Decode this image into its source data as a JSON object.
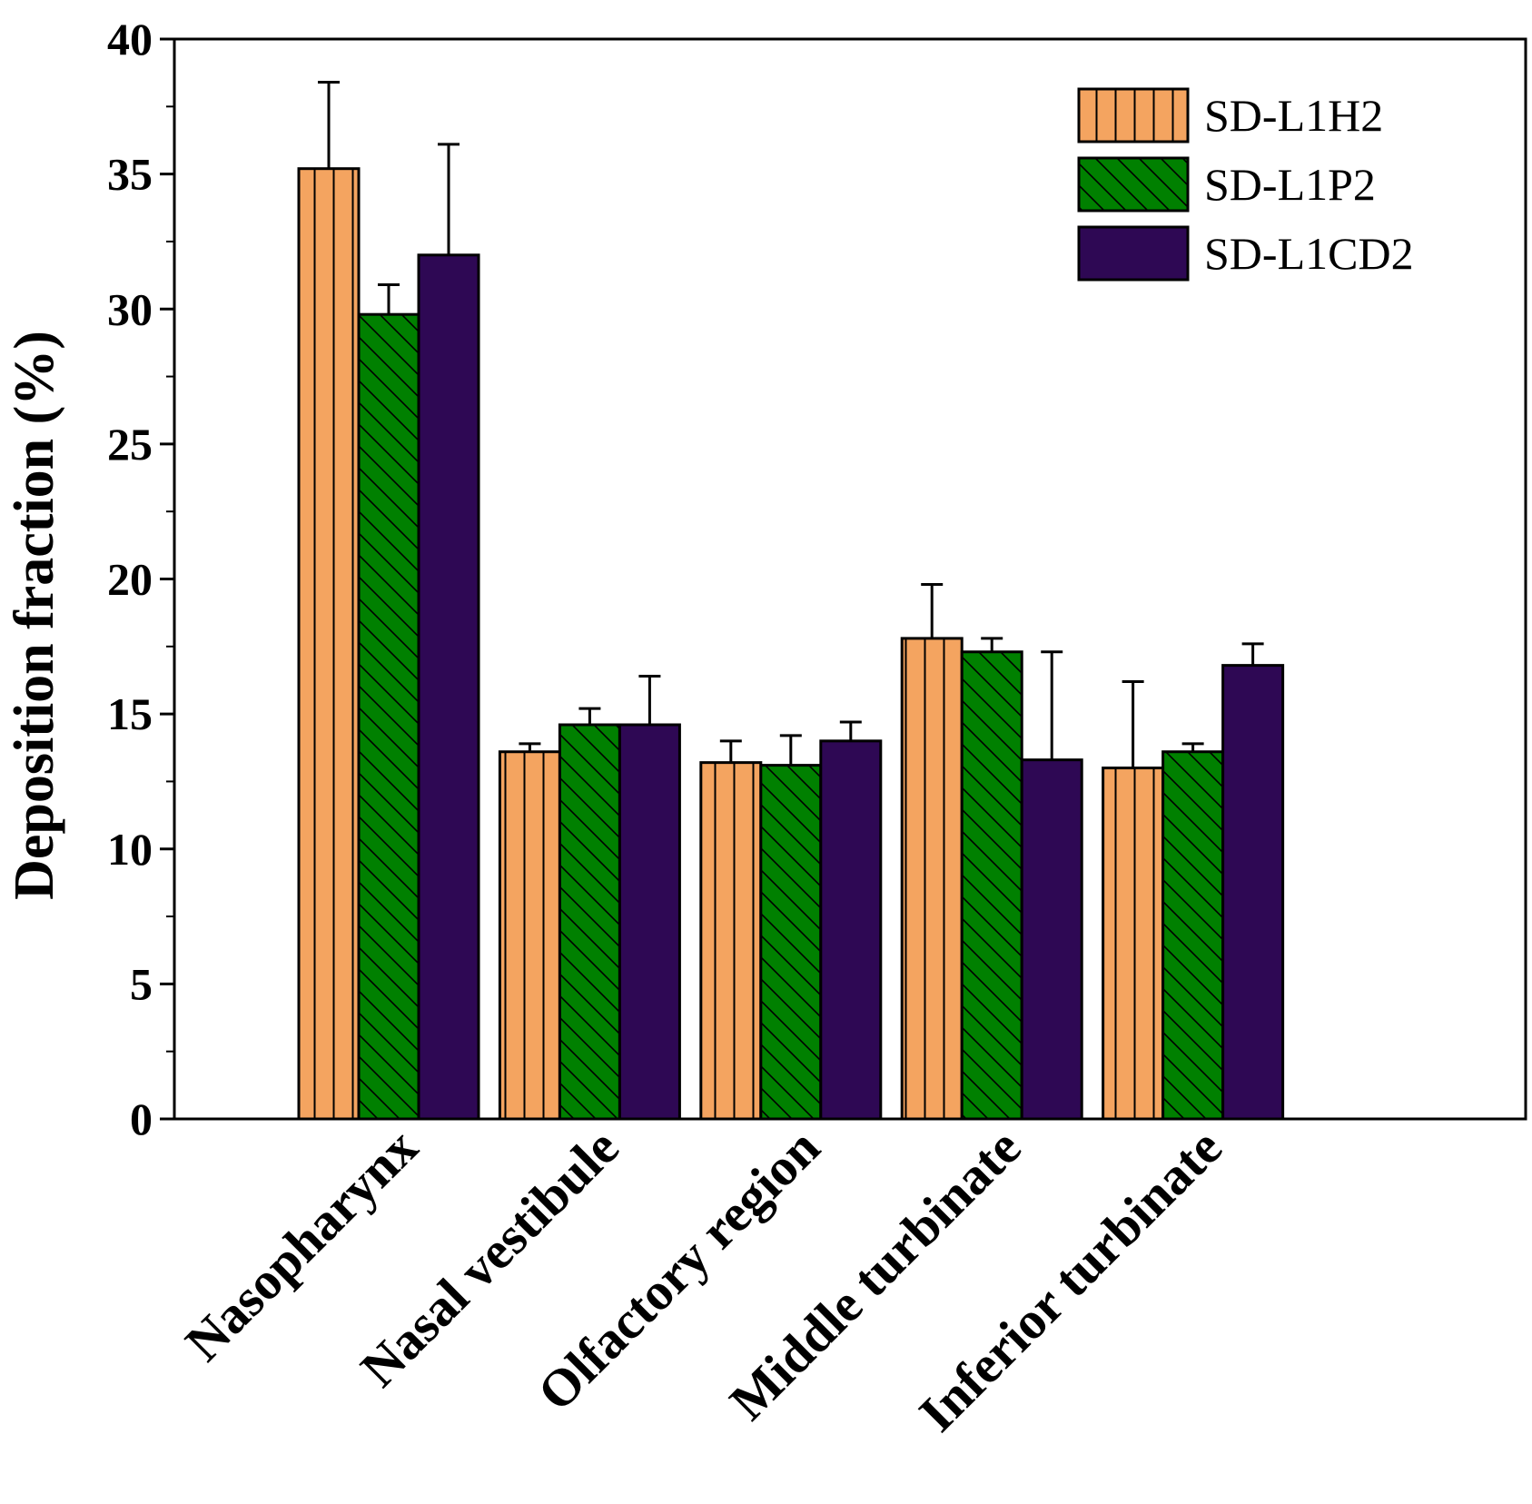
{
  "chart_data": {
    "type": "bar",
    "title": "",
    "xlabel": "",
    "ylabel": "Deposition fraction (%)",
    "ylim": [
      0,
      40
    ],
    "yticks": [
      0,
      5,
      10,
      15,
      20,
      25,
      30,
      35,
      40
    ],
    "categories": [
      "Nasopharynx",
      "Nasal vestibule",
      "Olfactory region",
      "Middle turbinate",
      "Inferior turbinate"
    ],
    "legend_position": "top-right",
    "series": [
      {
        "name": "SD-L1H2",
        "color": "#F4A460",
        "pattern": "vertical-lines",
        "values": [
          35.2,
          13.6,
          13.2,
          17.8,
          13.0
        ],
        "errors": [
          3.2,
          0.3,
          0.8,
          2.0,
          3.2
        ]
      },
      {
        "name": "SD-L1P2",
        "color": "#008000",
        "pattern": "diagonal-lines",
        "values": [
          29.8,
          14.6,
          13.1,
          17.3,
          13.6
        ],
        "errors": [
          1.1,
          0.6,
          1.1,
          0.5,
          0.3
        ]
      },
      {
        "name": "SD-L1CD2",
        "color": "#2E0854",
        "pattern": "solid",
        "values": [
          32.0,
          14.6,
          14.0,
          13.3,
          16.8
        ],
        "errors": [
          4.1,
          1.8,
          0.7,
          4.0,
          0.8
        ]
      }
    ]
  }
}
